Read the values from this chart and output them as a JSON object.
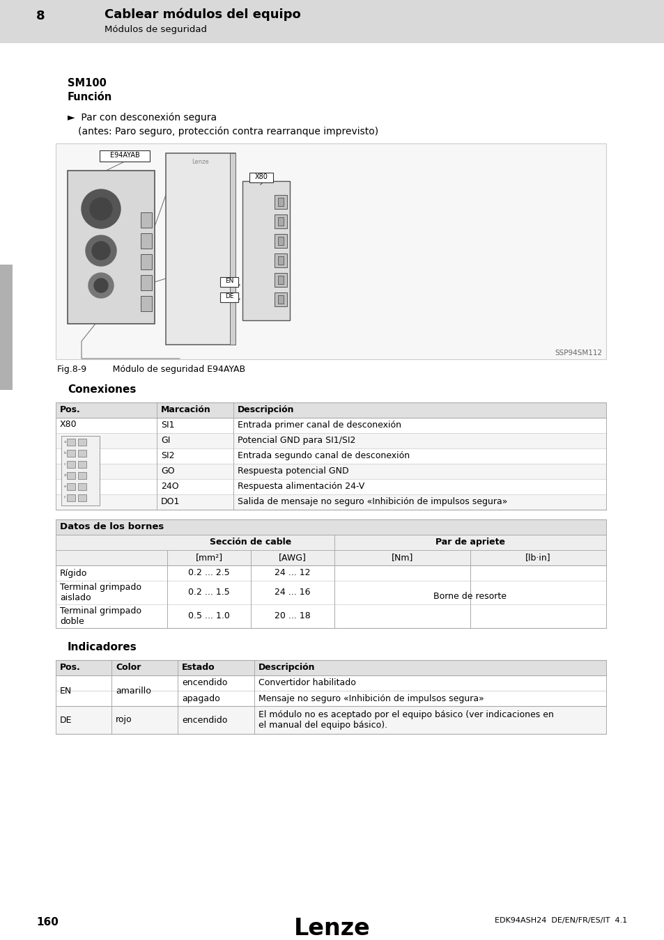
{
  "page_bg": "#ffffff",
  "header_bg": "#d9d9d9",
  "header_num": "8",
  "header_title": "Cablear módulos del equipo",
  "header_subtitle": "Módulos de seguridad",
  "section_title": "SM100",
  "subsection_function": "Función",
  "bullet_line1": "►  Par con desconexión segura",
  "bullet_line2": "(antes: Paro seguro, protección contra rearranque imprevisto)",
  "fig_caption": "Fig.8-9   Módulo de seguridad E94AYAB",
  "fig_ref": "SSP94SM112",
  "connections_title": "Conexiones",
  "conn_headers": [
    "Pos.",
    "Marcación",
    "Descripción"
  ],
  "conn_rows": [
    [
      "X80",
      "SI1",
      "Entrada primer canal de desconexión"
    ],
    [
      "",
      "GI",
      "Potencial GND para SI1/SI2"
    ],
    [
      "",
      "SI2",
      "Entrada segundo canal de desconexión"
    ],
    [
      "",
      "GO",
      "Respuesta potencial GND"
    ],
    [
      "",
      "24O",
      "Respuesta alimentación 24-V"
    ],
    [
      "",
      "DO1",
      "Salida de mensaje no seguro «Inhibición de impulsos segura»"
    ]
  ],
  "datos_title": "Datos de los bornes",
  "indicadores_title": "Indicadores",
  "ind_headers": [
    "Pos.",
    "Color",
    "Estado",
    "Descripción"
  ],
  "ind_rows": [
    [
      "EN",
      "amarillo",
      "encendido",
      "Convertidor habilitado"
    ],
    [
      "",
      "",
      "apagado",
      "Mensaje no seguro «Inhibición de impulsos segura»"
    ],
    [
      "DE",
      "rojo",
      "encendido",
      "El módulo no es aceptado por el equipo básico (ver indicaciones en\nel manual del equipo básico)."
    ]
  ],
  "footer_page": "160",
  "footer_logo": "Lenze",
  "footer_ref": "EDK94ASH24  DE/EN/FR/ES/IT  4.1",
  "table_header_bg": "#e0e0e0",
  "table_border": "#aaaaaa",
  "left_tab_color": "#b0b0b0"
}
